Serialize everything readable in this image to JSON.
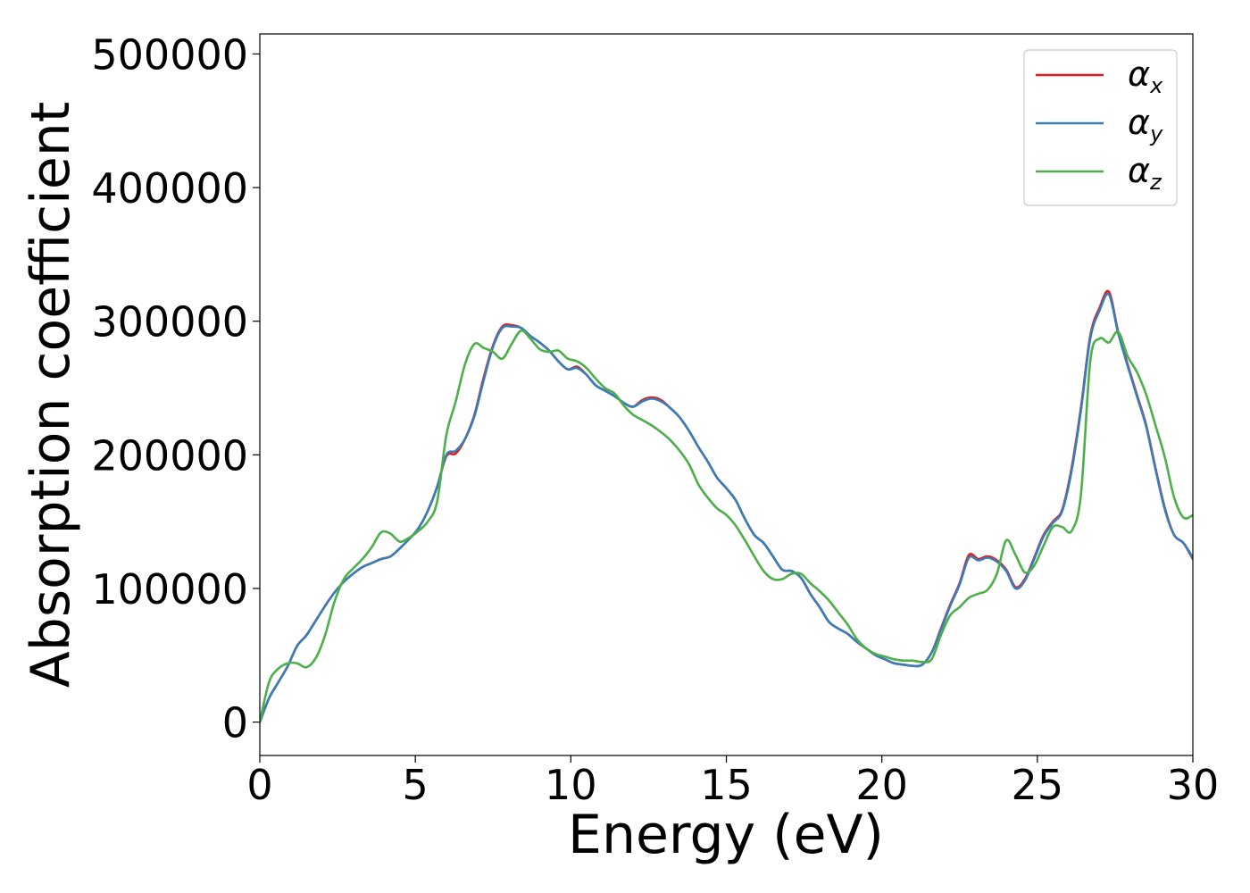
{
  "chart_data": {
    "type": "line",
    "title": "",
    "xlabel": "Energy (eV)",
    "ylabel": "Absorption coefficient",
    "xlim": [
      0,
      30
    ],
    "ylim": [
      -25000,
      515000
    ],
    "x_ticks": [
      0,
      5,
      10,
      15,
      20,
      25,
      30
    ],
    "x_tick_labels": [
      "0",
      "5",
      "10",
      "15",
      "20",
      "25",
      "30"
    ],
    "y_ticks": [
      0,
      100000,
      200000,
      300000,
      400000,
      500000
    ],
    "y_tick_labels": [
      "0",
      "100000",
      "200000",
      "300000",
      "400000",
      "500000"
    ],
    "grid": false,
    "legend_position": "top-right",
    "series": [
      {
        "name": "αx",
        "symbol": "α",
        "subscript": "x",
        "color": "#e41a1c",
        "x": [
          0,
          0.3,
          0.6,
          0.9,
          1.2,
          1.5,
          1.8,
          2.1,
          2.4,
          2.7,
          3.0,
          3.3,
          3.6,
          3.9,
          4.2,
          4.5,
          4.8,
          5.1,
          5.4,
          5.7,
          6.0,
          6.3,
          6.6,
          6.9,
          7.2,
          7.5,
          7.8,
          8.1,
          8.4,
          8.7,
          9.0,
          9.3,
          9.6,
          9.9,
          10.2,
          10.5,
          10.8,
          11.1,
          11.4,
          11.7,
          12.0,
          12.3,
          12.6,
          12.9,
          13.2,
          13.5,
          13.8,
          14.1,
          14.4,
          14.7,
          15.0,
          15.3,
          15.6,
          15.9,
          16.2,
          16.5,
          16.8,
          17.1,
          17.4,
          17.7,
          18.0,
          18.3,
          18.6,
          18.9,
          19.2,
          19.5,
          19.8,
          20.1,
          20.4,
          20.7,
          21.0,
          21.3,
          21.6,
          21.9,
          22.2,
          22.5,
          22.8,
          23.1,
          23.4,
          23.7,
          24.0,
          24.3,
          24.6,
          24.9,
          25.2,
          25.5,
          25.8,
          26.1,
          26.4,
          26.7,
          27.0,
          27.3,
          27.6,
          27.9,
          28.2,
          28.5,
          28.8,
          29.1,
          29.4,
          29.7,
          30.0
        ],
        "y": [
          0,
          18000,
          30000,
          42000,
          57000,
          65000,
          76000,
          87000,
          97000,
          105000,
          111000,
          116000,
          119000,
          122000,
          124000,
          130000,
          137000,
          145000,
          158000,
          176000,
          199000,
          201000,
          212000,
          230000,
          258000,
          282000,
          296000,
          297000,
          295000,
          289000,
          284000,
          278000,
          270000,
          264000,
          266000,
          260000,
          252000,
          248000,
          244000,
          239000,
          236000,
          241000,
          243000,
          241000,
          235000,
          228000,
          218000,
          206000,
          195000,
          183000,
          175000,
          166000,
          152000,
          140000,
          134000,
          124000,
          114000,
          113000,
          108000,
          96000,
          86000,
          75000,
          70000,
          66000,
          60000,
          55000,
          50000,
          47000,
          44000,
          43000,
          42000,
          43000,
          52000,
          70000,
          88000,
          104000,
          125000,
          122000,
          124000,
          121000,
          114000,
          101000,
          107000,
          123000,
          140000,
          150000,
          159000,
          190000,
          235000,
          289000,
          310000,
          322000,
          292000,
          268000,
          245000,
          222000,
          190000,
          160000,
          140000,
          134000,
          122000
        ]
      },
      {
        "name": "αy",
        "symbol": "α",
        "subscript": "y",
        "color": "#377eb8",
        "x": [
          0,
          0.3,
          0.6,
          0.9,
          1.2,
          1.5,
          1.8,
          2.1,
          2.4,
          2.7,
          3.0,
          3.3,
          3.6,
          3.9,
          4.2,
          4.5,
          4.8,
          5.1,
          5.4,
          5.7,
          6.0,
          6.3,
          6.6,
          6.9,
          7.2,
          7.5,
          7.8,
          8.1,
          8.4,
          8.7,
          9.0,
          9.3,
          9.6,
          9.9,
          10.2,
          10.5,
          10.8,
          11.1,
          11.4,
          11.7,
          12.0,
          12.3,
          12.6,
          12.9,
          13.2,
          13.5,
          13.8,
          14.1,
          14.4,
          14.7,
          15.0,
          15.3,
          15.6,
          15.9,
          16.2,
          16.5,
          16.8,
          17.1,
          17.4,
          17.7,
          18.0,
          18.3,
          18.6,
          18.9,
          19.2,
          19.5,
          19.8,
          20.1,
          20.4,
          20.7,
          21.0,
          21.3,
          21.6,
          21.9,
          22.2,
          22.5,
          22.8,
          23.1,
          23.4,
          23.7,
          24.0,
          24.3,
          24.6,
          24.9,
          25.2,
          25.5,
          25.8,
          26.1,
          26.4,
          26.7,
          27.0,
          27.3,
          27.6,
          27.9,
          28.2,
          28.5,
          28.8,
          29.1,
          29.4,
          29.7,
          30.0
        ],
        "y": [
          0,
          18000,
          30000,
          42000,
          57000,
          65000,
          76000,
          87000,
          97000,
          105000,
          111000,
          116000,
          119000,
          122000,
          124000,
          130000,
          137000,
          145000,
          158000,
          176000,
          200000,
          203000,
          212000,
          229000,
          256000,
          281000,
          295000,
          296000,
          295000,
          289000,
          284000,
          278000,
          270000,
          264000,
          265000,
          260000,
          252000,
          248000,
          244000,
          239000,
          236000,
          240000,
          242000,
          240000,
          235000,
          228000,
          218000,
          206000,
          195000,
          183000,
          175000,
          166000,
          152000,
          140000,
          134000,
          124000,
          114000,
          113000,
          108000,
          96000,
          86000,
          75000,
          70000,
          66000,
          60000,
          55000,
          50000,
          47000,
          44000,
          43000,
          42000,
          43000,
          52000,
          69000,
          87000,
          103000,
          123000,
          121000,
          123000,
          120000,
          113000,
          100000,
          106000,
          122000,
          139000,
          149000,
          158000,
          188000,
          233000,
          287000,
          308000,
          320000,
          291000,
          267000,
          244000,
          221000,
          189000,
          159000,
          140000,
          134000,
          123000
        ]
      },
      {
        "name": "αz",
        "symbol": "α",
        "subscript": "z",
        "color": "#4daf4a",
        "x": [
          0,
          0.3,
          0.6,
          0.9,
          1.2,
          1.5,
          1.8,
          2.1,
          2.4,
          2.7,
          3.0,
          3.3,
          3.6,
          3.9,
          4.2,
          4.5,
          4.8,
          5.1,
          5.4,
          5.7,
          6.0,
          6.3,
          6.6,
          6.9,
          7.2,
          7.5,
          7.8,
          8.1,
          8.4,
          8.7,
          9.0,
          9.3,
          9.6,
          9.9,
          10.2,
          10.5,
          10.8,
          11.1,
          11.4,
          11.7,
          12.0,
          12.3,
          12.6,
          12.9,
          13.2,
          13.5,
          13.8,
          14.1,
          14.4,
          14.7,
          15.0,
          15.3,
          15.6,
          15.9,
          16.2,
          16.5,
          16.8,
          17.1,
          17.4,
          17.7,
          18.0,
          18.3,
          18.6,
          18.9,
          19.2,
          19.5,
          19.8,
          20.1,
          20.4,
          20.7,
          21.0,
          21.3,
          21.6,
          21.9,
          22.2,
          22.5,
          22.8,
          23.1,
          23.4,
          23.7,
          24.0,
          24.3,
          24.6,
          24.9,
          25.2,
          25.5,
          25.8,
          26.1,
          26.4,
          26.7,
          27.0,
          27.3,
          27.6,
          27.9,
          28.2,
          28.5,
          28.8,
          29.1,
          29.4,
          29.7,
          30.0
        ],
        "y": [
          0,
          30000,
          40000,
          44000,
          44000,
          41000,
          48000,
          65000,
          90000,
          107000,
          115000,
          122000,
          131000,
          142000,
          141000,
          135000,
          138000,
          143000,
          150000,
          165000,
          215000,
          240000,
          268000,
          283000,
          280000,
          277000,
          272000,
          283000,
          293000,
          287000,
          279000,
          277000,
          278000,
          272000,
          270000,
          265000,
          257000,
          250000,
          246000,
          237000,
          230000,
          226000,
          222000,
          217000,
          211000,
          203000,
          193000,
          178000,
          168000,
          160000,
          155000,
          147000,
          136000,
          124000,
          113000,
          107000,
          107000,
          111000,
          111000,
          104000,
          98000,
          91000,
          82000,
          73000,
          62000,
          55000,
          51000,
          49000,
          47000,
          46000,
          46000,
          45000,
          47000,
          65000,
          80000,
          86000,
          93000,
          96000,
          99000,
          111000,
          136000,
          125000,
          112000,
          117000,
          132000,
          146000,
          146000,
          143000,
          170000,
          270000,
          287000,
          284000,
          292000,
          274000,
          262000,
          245000,
          222000,
          198000,
          168000,
          153000,
          155000
        ]
      }
    ]
  }
}
